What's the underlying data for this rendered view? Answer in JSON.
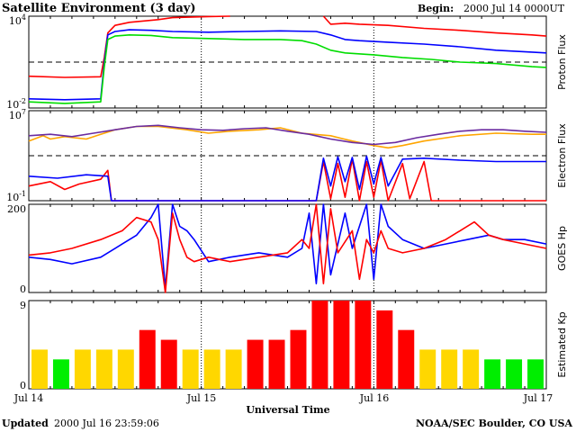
{
  "header": {
    "title": "Satellite Environment (3 day)",
    "begin_label": "Begin:",
    "begin_value": "2000 Jul 14 0000UT"
  },
  "footer": {
    "updated_label": "Updated",
    "updated_value": "2000 Jul 16 23:59:06",
    "credit": "NOAA/SEC Boulder, CO USA"
  },
  "chart_data": [
    {
      "type": "line",
      "ylabel": "Proton Flux",
      "yscale": "log",
      "ylim": [
        0.01,
        10000
      ],
      "y_ticks": [
        {
          "base": "10",
          "exp": "4",
          "value": 10000
        },
        {
          "base": "10",
          "exp": "-2",
          "value": 0.01
        }
      ],
      "x_range_hours": [
        0,
        72
      ],
      "threshold": 10,
      "series": [
        {
          "color": "#ff0000",
          "points": [
            [
              0,
              1.2
            ],
            [
              5,
              1.0
            ],
            [
              10,
              1.1
            ],
            [
              10.5,
              20
            ],
            [
              11,
              800
            ],
            [
              12,
              2500
            ],
            [
              14,
              4000
            ],
            [
              18,
              6000
            ],
            [
              20,
              8000
            ],
            [
              25,
              9500
            ],
            [
              28,
              10000
            ]
          ]
        },
        {
          "color": "#ff0000",
          "points": [
            [
              41,
              10000
            ],
            [
              42,
              3000
            ],
            [
              44,
              3500
            ],
            [
              46,
              3000
            ],
            [
              50,
              2500
            ],
            [
              55,
              1600
            ],
            [
              60,
              1200
            ],
            [
              65,
              800
            ],
            [
              70,
              600
            ],
            [
              72,
              500
            ]
          ]
        },
        {
          "color": "#0000ff",
          "points": [
            [
              0,
              0.04
            ],
            [
              5,
              0.035
            ],
            [
              10,
              0.04
            ],
            [
              10.5,
              10
            ],
            [
              11,
              600
            ],
            [
              12,
              1000
            ],
            [
              14,
              1300
            ],
            [
              17,
              1200
            ],
            [
              20,
              1000
            ],
            [
              25,
              900
            ],
            [
              30,
              1000
            ],
            [
              35,
              1100
            ],
            [
              40,
              1000
            ],
            [
              42,
              600
            ],
            [
              44,
              300
            ],
            [
              46,
              250
            ],
            [
              50,
              200
            ],
            [
              55,
              150
            ],
            [
              60,
              100
            ],
            [
              65,
              60
            ],
            [
              70,
              45
            ],
            [
              72,
              40
            ]
          ]
        },
        {
          "color": "#00dd00",
          "points": [
            [
              0,
              0.025
            ],
            [
              5,
              0.02
            ],
            [
              10,
              0.025
            ],
            [
              10.5,
              5
            ],
            [
              11,
              300
            ],
            [
              12,
              500
            ],
            [
              14,
              600
            ],
            [
              17,
              550
            ],
            [
              20,
              400
            ],
            [
              25,
              350
            ],
            [
              30,
              300
            ],
            [
              35,
              300
            ],
            [
              38,
              250
            ],
            [
              40,
              150
            ],
            [
              42,
              60
            ],
            [
              44,
              40
            ],
            [
              48,
              30
            ],
            [
              52,
              20
            ],
            [
              56,
              15
            ],
            [
              60,
              10
            ],
            [
              65,
              8
            ],
            [
              70,
              5
            ],
            [
              72,
              4.5
            ]
          ]
        }
      ]
    },
    {
      "type": "line",
      "ylabel": "Electron Flux",
      "yscale": "log",
      "ylim": [
        0.1,
        10000000
      ],
      "y_ticks": [
        {
          "base": "10",
          "exp": "7",
          "value": 10000000
        },
        {
          "base": "10",
          "exp": "-1",
          "value": 0.1
        }
      ],
      "x_range_hours": [
        0,
        72
      ],
      "threshold": 1000,
      "series": [
        {
          "color": "#ffa500",
          "points": [
            [
              0,
              20000
            ],
            [
              2,
              60000
            ],
            [
              3,
              30000
            ],
            [
              5,
              50000
            ],
            [
              8,
              30000
            ],
            [
              10,
              80000
            ],
            [
              12,
              200000
            ],
            [
              15,
              400000
            ],
            [
              18,
              400000
            ],
            [
              22,
              200000
            ],
            [
              25,
              100000
            ],
            [
              28,
              150000
            ],
            [
              32,
              200000
            ],
            [
              35,
              300000
            ],
            [
              38,
              100000
            ],
            [
              42,
              60000
            ],
            [
              45,
              20000
            ],
            [
              48,
              8000
            ],
            [
              50,
              5000
            ],
            [
              52,
              8000
            ],
            [
              55,
              20000
            ],
            [
              60,
              60000
            ],
            [
              65,
              100000
            ],
            [
              70,
              80000
            ],
            [
              72,
              80000
            ]
          ]
        },
        {
          "color": "#6a2ba0",
          "points": [
            [
              0,
              60000
            ],
            [
              3,
              80000
            ],
            [
              6,
              50000
            ],
            [
              9,
              100000
            ],
            [
              12,
              200000
            ],
            [
              15,
              400000
            ],
            [
              18,
              500000
            ],
            [
              21,
              300000
            ],
            [
              24,
              200000
            ],
            [
              27,
              180000
            ],
            [
              30,
              250000
            ],
            [
              33,
              300000
            ],
            [
              36,
              150000
            ],
            [
              39,
              80000
            ],
            [
              42,
              30000
            ],
            [
              45,
              15000
            ],
            [
              48,
              10000
            ],
            [
              51,
              15000
            ],
            [
              54,
              40000
            ],
            [
              57,
              80000
            ],
            [
              60,
              150000
            ],
            [
              63,
              200000
            ],
            [
              66,
              200000
            ],
            [
              69,
              150000
            ],
            [
              72,
              120000
            ]
          ]
        },
        {
          "color": "#ff0000",
          "points": [
            [
              0,
              2
            ],
            [
              3,
              5
            ],
            [
              5,
              1
            ],
            [
              7,
              3
            ],
            [
              10,
              8
            ],
            [
              11,
              50
            ],
            [
              11.5,
              0.1
            ],
            [
              40,
              0.1
            ],
            [
              41,
              300
            ],
            [
              42,
              0.15
            ],
            [
              43,
              200
            ],
            [
              44,
              0.2
            ],
            [
              45,
              500
            ],
            [
              46,
              0.1
            ],
            [
              47,
              300
            ],
            [
              48,
              0.2
            ],
            [
              49,
              400
            ],
            [
              50,
              0.1
            ],
            [
              52,
              200
            ],
            [
              53,
              0.15
            ],
            [
              55,
              300
            ],
            [
              56,
              0.1
            ],
            [
              72,
              0.1
            ]
          ]
        },
        {
          "color": "#0000ff",
          "points": [
            [
              0,
              15
            ],
            [
              4,
              10
            ],
            [
              8,
              20
            ],
            [
              11,
              15
            ],
            [
              11.5,
              0.1
            ],
            [
              40,
              0.1
            ],
            [
              41,
              600
            ],
            [
              42,
              2
            ],
            [
              43,
              800
            ],
            [
              44,
              5
            ],
            [
              45,
              700
            ],
            [
              46,
              1
            ],
            [
              47,
              900
            ],
            [
              48,
              3
            ],
            [
              49,
              700
            ],
            [
              50,
              2
            ],
            [
              52,
              500
            ],
            [
              55,
              600
            ],
            [
              60,
              400
            ],
            [
              65,
              300
            ],
            [
              70,
              300
            ],
            [
              72,
              300
            ]
          ]
        }
      ]
    },
    {
      "type": "line",
      "ylabel": "GOES Hp",
      "ylim": [
        0,
        200
      ],
      "y_ticks": [
        {
          "label": "200",
          "value": 200
        },
        {
          "label": "0",
          "value": 0
        }
      ],
      "x_range_hours": [
        0,
        72
      ],
      "series": [
        {
          "color": "#0000ff",
          "points": [
            [
              0,
              80
            ],
            [
              3,
              75
            ],
            [
              6,
              65
            ],
            [
              10,
              80
            ],
            [
              13,
              110
            ],
            [
              15,
              130
            ],
            [
              17,
              170
            ],
            [
              18,
              200
            ],
            [
              19,
              10
            ],
            [
              20,
              200
            ],
            [
              21,
              150
            ],
            [
              22,
              140
            ],
            [
              23,
              120
            ],
            [
              25,
              70
            ],
            [
              28,
              80
            ],
            [
              32,
              90
            ],
            [
              36,
              80
            ],
            [
              38,
              100
            ],
            [
              39,
              180
            ],
            [
              40,
              20
            ],
            [
              41,
              200
            ],
            [
              42,
              40
            ],
            [
              44,
              180
            ],
            [
              45,
              100
            ],
            [
              47,
              200
            ],
            [
              48,
              30
            ],
            [
              49,
              200
            ],
            [
              50,
              150
            ],
            [
              52,
              120
            ],
            [
              55,
              100
            ],
            [
              58,
              110
            ],
            [
              61,
              120
            ],
            [
              64,
              130
            ],
            [
              66,
              120
            ],
            [
              69,
              120
            ],
            [
              72,
              110
            ]
          ]
        },
        {
          "color": "#ff0000",
          "points": [
            [
              0,
              85
            ],
            [
              3,
              90
            ],
            [
              6,
              100
            ],
            [
              10,
              120
            ],
            [
              13,
              140
            ],
            [
              15,
              170
            ],
            [
              17,
              160
            ],
            [
              18,
              120
            ],
            [
              19,
              0
            ],
            [
              20,
              180
            ],
            [
              21,
              120
            ],
            [
              22,
              80
            ],
            [
              23,
              70
            ],
            [
              25,
              80
            ],
            [
              28,
              70
            ],
            [
              32,
              80
            ],
            [
              36,
              90
            ],
            [
              38,
              120
            ],
            [
              39,
              100
            ],
            [
              40,
              200
            ],
            [
              41,
              20
            ],
            [
              42,
              190
            ],
            [
              43,
              90
            ],
            [
              45,
              140
            ],
            [
              46,
              30
            ],
            [
              47,
              120
            ],
            [
              48,
              90
            ],
            [
              49,
              140
            ],
            [
              50,
              100
            ],
            [
              52,
              90
            ],
            [
              55,
              100
            ],
            [
              58,
              120
            ],
            [
              60,
              140
            ],
            [
              62,
              160
            ],
            [
              64,
              130
            ],
            [
              66,
              120
            ],
            [
              69,
              110
            ],
            [
              72,
              100
            ]
          ]
        }
      ]
    },
    {
      "type": "bar",
      "ylabel": "Estimated Kp",
      "ylim": [
        0,
        9
      ],
      "y_ticks": [
        {
          "label": "9",
          "value": 9
        },
        {
          "label": "0",
          "value": 0
        }
      ],
      "interval_hours": 3,
      "values": [
        4,
        3,
        4,
        4,
        4,
        6,
        5,
        4,
        4,
        4,
        5,
        5,
        6,
        9,
        9,
        9,
        8,
        6,
        4,
        4,
        4,
        3,
        3,
        3
      ],
      "colors": {
        "quiet": "#00ee00",
        "unsettled": "#ffd700",
        "storm": "#ff0000"
      }
    }
  ],
  "x_axis": {
    "tick_labels": [
      "Jul 14",
      "Jul 15",
      "Jul 16",
      "Jul 17"
    ],
    "tick_hours": [
      0,
      24,
      48,
      72
    ],
    "label": "Universal Time"
  }
}
